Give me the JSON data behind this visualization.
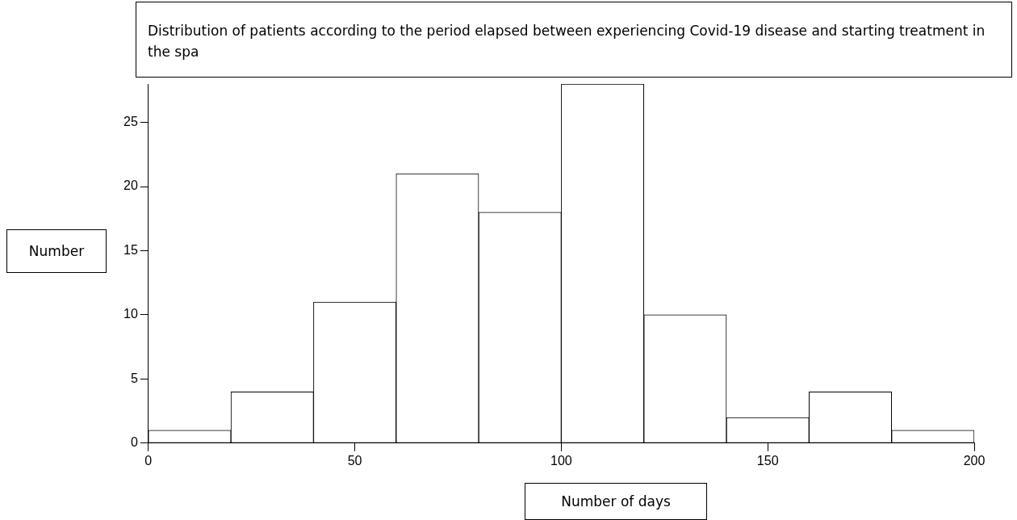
{
  "chart_data": {
    "type": "histogram",
    "title": "Distribution of patients according to the period elapsed between experiencing Covid-19 disease and starting treatment in the spa",
    "xlabel": "Number of days",
    "ylabel": "Number",
    "bins": [
      0,
      20,
      40,
      60,
      80,
      100,
      120,
      140,
      160,
      180,
      200
    ],
    "values": [
      1,
      4,
      11,
      21,
      18,
      28,
      10,
      2,
      4,
      1
    ],
    "color": "#ffffff",
    "xlim": [
      0,
      200
    ],
    "xticks": [
      0,
      50,
      100,
      150,
      200
    ],
    "ylim": [
      0,
      28
    ],
    "yticks": [
      0,
      5,
      10,
      15,
      20,
      25
    ],
    "grid": false,
    "legend": false
  }
}
